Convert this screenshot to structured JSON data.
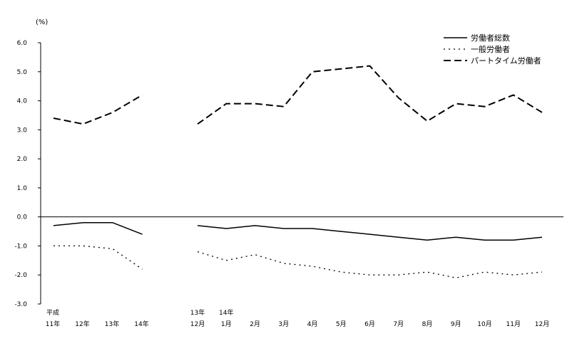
{
  "chart_data": {
    "type": "line",
    "unit_label": "(%)",
    "ylim": [
      -3.0,
      6.0
    ],
    "yticks": [
      6.0,
      5.0,
      4.0,
      3.0,
      2.0,
      1.0,
      0.0,
      -1.0,
      -2.0,
      -3.0
    ],
    "ytick_labels": [
      "6.0",
      "5.0",
      "4.0",
      "3.0",
      "2.0",
      "1.0",
      "0.0",
      "-1.0",
      "-2.0",
      "-3.0"
    ],
    "annual": {
      "top_labels": [
        "平成",
        "",
        "",
        ""
      ],
      "labels": [
        "11年",
        "12年",
        "13年",
        "14年"
      ]
    },
    "monthly": {
      "top_labels": [
        "13年",
        "14年",
        "",
        "",
        "",
        "",
        "",
        "",
        "",
        "",
        "",
        "",
        ""
      ],
      "labels": [
        "12月",
        "1月",
        "2月",
        "3月",
        "4月",
        "5月",
        "6月",
        "7月",
        "8月",
        "9月",
        "10月",
        "11月",
        "12月"
      ]
    },
    "series": [
      {
        "name": "労働者総数",
        "style": "solid",
        "annual": [
          -0.3,
          -0.2,
          -0.2,
          -0.6
        ],
        "monthly": [
          -0.3,
          -0.4,
          -0.3,
          -0.4,
          -0.4,
          -0.5,
          -0.6,
          -0.7,
          -0.8,
          -0.7,
          -0.8,
          -0.8,
          -0.7
        ]
      },
      {
        "name": "一般労働者",
        "style": "dotted",
        "annual": [
          -1.0,
          -1.0,
          -1.1,
          -1.8
        ],
        "monthly": [
          -1.2,
          -1.5,
          -1.3,
          -1.6,
          -1.7,
          -1.9,
          -2.0,
          -2.0,
          -1.9,
          -2.1,
          -1.9,
          -2.0,
          -1.9
        ]
      },
      {
        "name": "パートタイム労働者",
        "style": "dashed",
        "annual": [
          3.4,
          3.2,
          3.6,
          4.2
        ],
        "monthly": [
          3.2,
          3.9,
          3.9,
          3.8,
          5.0,
          5.1,
          5.2,
          4.1,
          3.3,
          3.9,
          3.8,
          4.2,
          3.6
        ]
      }
    ],
    "legend_position": "top-right",
    "grid": false
  }
}
